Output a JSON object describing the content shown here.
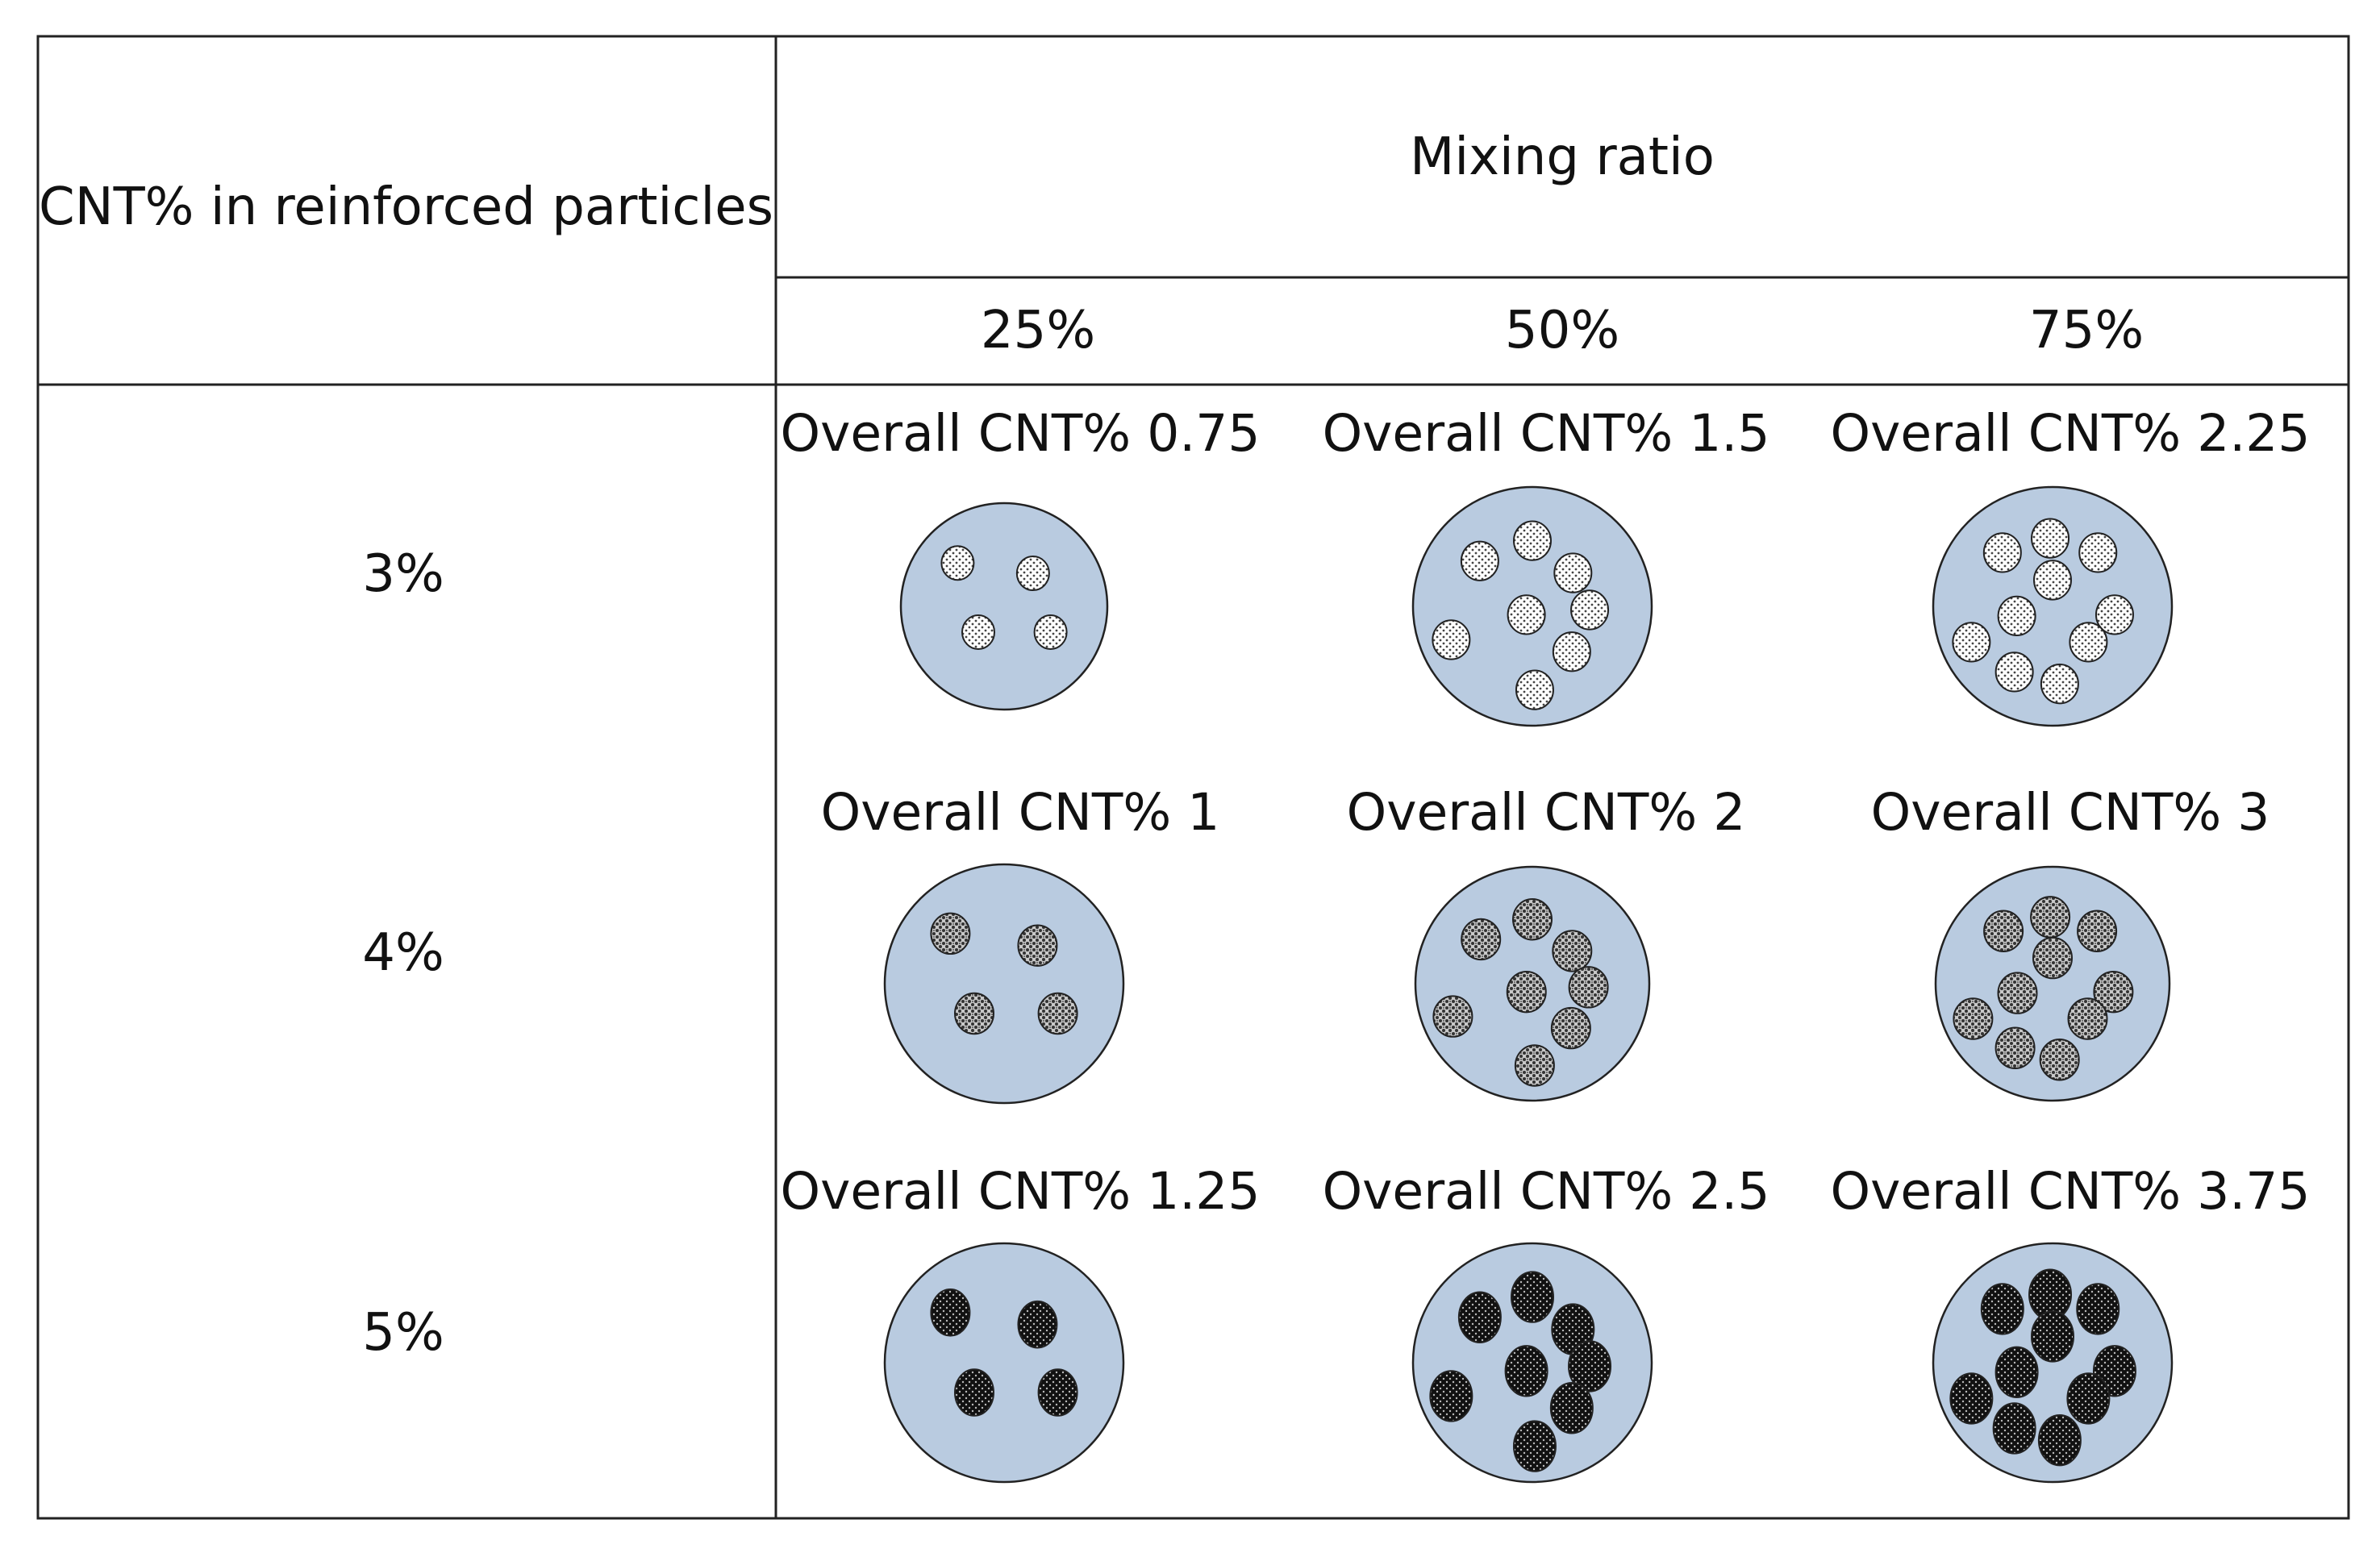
{
  "table": {
    "row_header": "CNT% in reinforced particles",
    "col_header": "Mixing ratio",
    "ratios": [
      "25%",
      "50%",
      "75%"
    ],
    "rows": [
      {
        "cnt": "3%",
        "captions": [
          "Overall CNT% 0.75",
          "Overall CNT% 1.5",
          "Overall CNT% 2.25"
        ]
      },
      {
        "cnt": "4%",
        "captions": [
          "Overall CNT% 1",
          "Overall CNT% 2",
          "Overall CNT% 3"
        ]
      },
      {
        "cnt": "5%",
        "captions": [
          "Overall CNT% 1.25",
          "Overall CNT% 2.5",
          "Overall CNT% 3.75"
        ]
      }
    ],
    "particle_counts": [
      [
        4,
        8,
        10
      ],
      [
        4,
        8,
        10
      ],
      [
        4,
        8,
        10
      ]
    ]
  },
  "colors": {
    "matrix_fill": "#b9cbe0",
    "particle_3pct": "#d6d6d6",
    "particle_4pct": "#8e8e8e",
    "particle_5pct": "#1a1a1a",
    "line": "#222222"
  }
}
